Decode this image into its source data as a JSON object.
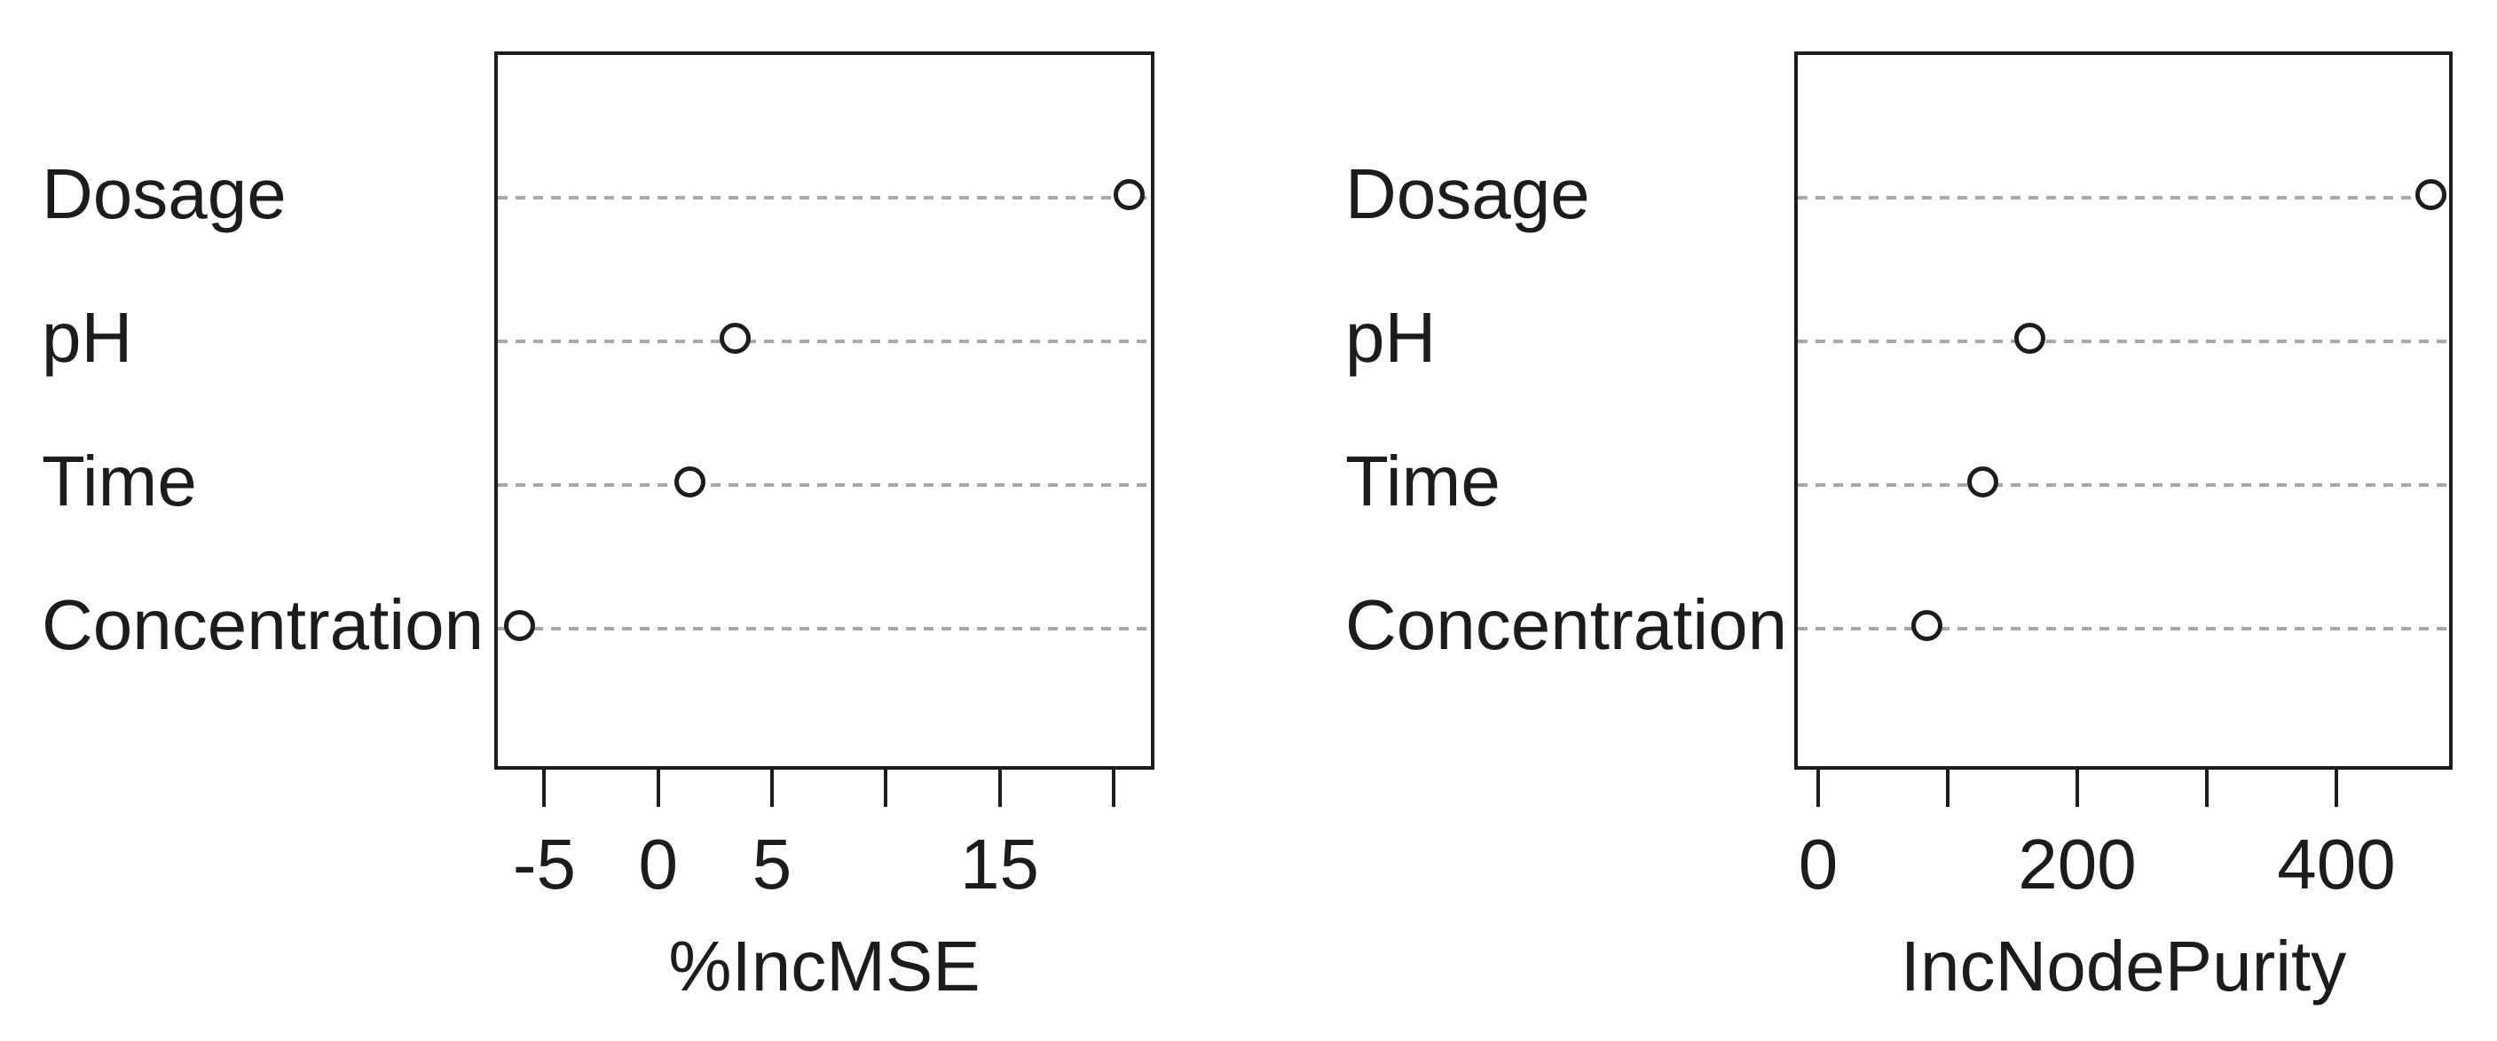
{
  "page": {
    "description": "Random forest variable importance dot charts",
    "background": "#ffffff"
  },
  "colors": {
    "text": "#1c1c1c",
    "axis": "#1c1c1c",
    "grid_dots": "#a8a8a8",
    "point_stroke": "#1c1c1c",
    "point_fill": "#ffffff"
  },
  "chart_data": [
    {
      "type": "scatter",
      "subtype": "dotchart",
      "title": "",
      "xlabel": "%IncMSE",
      "ylabel": "",
      "categories": [
        "Dosage",
        "pH",
        "Time",
        "Concentration"
      ],
      "values": [
        20.7,
        3.4,
        1.4,
        -6.1
      ],
      "xlim": [
        -7.2,
        21.8
      ],
      "xticks": [
        {
          "value": -5,
          "label": "-5"
        },
        {
          "value": 0,
          "label": "0"
        },
        {
          "value": 5,
          "label": "5"
        },
        {
          "value": 10,
          "label": ""
        },
        {
          "value": 15,
          "label": "15"
        },
        {
          "value": 20,
          "label": ""
        }
      ],
      "grid": "horizontal-dotted",
      "legend": "none",
      "marker": "open-circle"
    },
    {
      "type": "scatter",
      "subtype": "dotchart",
      "title": "",
      "xlabel": "IncNodePurity",
      "ylabel": "",
      "categories": [
        "Dosage",
        "pH",
        "Time",
        "Concentration"
      ],
      "values": [
        473,
        163,
        127,
        84
      ],
      "xlim": [
        -18.5,
        489.7
      ],
      "xticks": [
        {
          "value": 0,
          "label": "0"
        },
        {
          "value": 100,
          "label": ""
        },
        {
          "value": 200,
          "label": "200"
        },
        {
          "value": 300,
          "label": ""
        },
        {
          "value": 400,
          "label": "400"
        }
      ],
      "grid": "horizontal-dotted",
      "legend": "none",
      "marker": "open-circle"
    }
  ]
}
